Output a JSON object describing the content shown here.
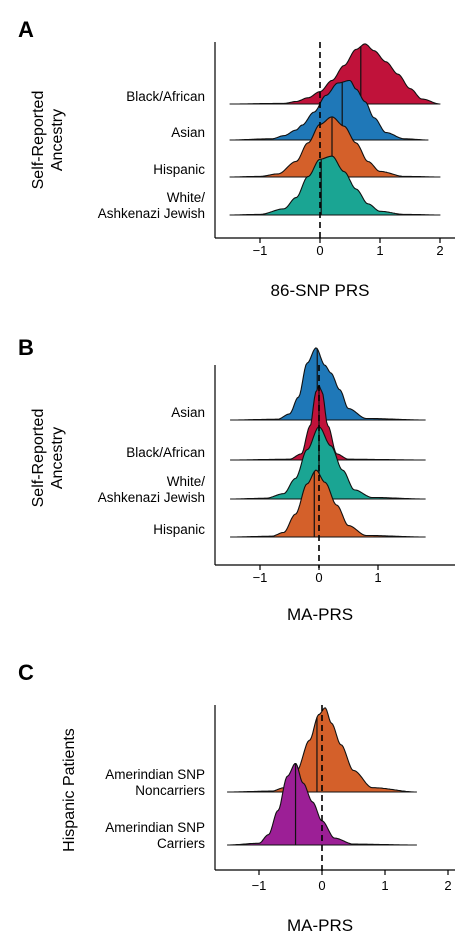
{
  "chart_data": [
    {
      "panel": "A",
      "type": "area",
      "xlabel": "86-SNP PRS",
      "ylabel": [
        "Self-Reported",
        "Ancestry"
      ],
      "xlim": [
        -1.7,
        2.2
      ],
      "xticks": [
        -1,
        0,
        1,
        2
      ],
      "tick_labels": [
        "−1",
        "0",
        "1",
        "2"
      ],
      "reference_line_x": 0,
      "series": [
        {
          "name": "White/\nAshkenazi Jewish",
          "label_lines": [
            "White/",
            "Ashkenazi Jewish"
          ],
          "color": "#1aa593",
          "range": [
            -1.5,
            2.0
          ],
          "median": 0.02,
          "x": [
            -1.5,
            -1.0,
            -0.6,
            -0.4,
            -0.2,
            0.0,
            0.2,
            0.4,
            0.6,
            0.8,
            1.0,
            1.4,
            2.0
          ],
          "y": [
            0,
            0.01,
            0.1,
            0.28,
            0.62,
            0.9,
            0.95,
            0.7,
            0.42,
            0.18,
            0.06,
            0.01,
            0
          ]
        },
        {
          "name": "Hispanic",
          "color": "#d4602a",
          "range": [
            -1.5,
            2.0
          ],
          "median": 0.2,
          "x": [
            -1.5,
            -1.0,
            -0.7,
            -0.4,
            -0.2,
            0.0,
            0.2,
            0.4,
            0.6,
            0.8,
            1.0,
            1.4,
            2.0
          ],
          "y": [
            0,
            0.01,
            0.05,
            0.25,
            0.55,
            0.85,
            0.97,
            0.82,
            0.55,
            0.25,
            0.09,
            0.01,
            0
          ]
        },
        {
          "name": "Asian",
          "color": "#1f78b8",
          "range": [
            -1.5,
            1.8
          ],
          "median": 0.37,
          "x": [
            -1.5,
            -0.8,
            -0.6,
            -0.4,
            -0.3,
            -0.1,
            0.1,
            0.3,
            0.5,
            0.6,
            0.75,
            0.9,
            1.1,
            1.4,
            1.8
          ],
          "y": [
            0,
            0.02,
            0.07,
            0.16,
            0.24,
            0.45,
            0.72,
            0.92,
            0.96,
            0.82,
            0.62,
            0.36,
            0.12,
            0.02,
            0
          ]
        },
        {
          "name": "Black/African",
          "color": "#c0123a",
          "range": [
            -1.5,
            2.0
          ],
          "median": 0.68,
          "x": [
            -1.5,
            -0.6,
            -0.4,
            -0.2,
            0.0,
            0.2,
            0.4,
            0.6,
            0.75,
            0.9,
            1.1,
            1.3,
            1.5,
            1.7,
            2.0
          ],
          "y": [
            0,
            0.01,
            0.04,
            0.1,
            0.2,
            0.38,
            0.62,
            0.88,
            0.97,
            0.86,
            0.68,
            0.48,
            0.25,
            0.08,
            0
          ]
        }
      ]
    },
    {
      "panel": "B",
      "type": "area",
      "xlabel": "MA-PRS",
      "ylabel": [
        "Self-Reported",
        "Ancestry"
      ],
      "xlim": [
        -1.7,
        2.0
      ],
      "xticks": [
        -1,
        0,
        1
      ],
      "tick_labels": [
        "−1",
        "0",
        "1"
      ],
      "reference_line_x": 0,
      "series": [
        {
          "name": "Hispanic",
          "color": "#d4602a",
          "range": [
            -1.5,
            1.8
          ],
          "median": -0.08,
          "x": [
            -1.5,
            -0.8,
            -0.6,
            -0.4,
            -0.2,
            -0.05,
            0.1,
            0.3,
            0.5,
            0.8,
            1.8
          ],
          "y": [
            0,
            0.01,
            0.06,
            0.3,
            0.7,
            0.88,
            0.72,
            0.42,
            0.15,
            0.02,
            0
          ]
        },
        {
          "name": "White/\nAshkenazi Jewish",
          "label_lines": [
            "White/",
            "Ashkenazi Jewish"
          ],
          "color": "#1aa593",
          "range": [
            -1.5,
            1.8
          ],
          "median": 0.0,
          "x": [
            -1.5,
            -0.9,
            -0.6,
            -0.4,
            -0.2,
            0.0,
            0.2,
            0.4,
            0.6,
            0.9,
            1.8
          ],
          "y": [
            0,
            0.01,
            0.07,
            0.27,
            0.65,
            0.95,
            0.7,
            0.38,
            0.12,
            0.02,
            0
          ]
        },
        {
          "name": "Black/African",
          "color": "#c0123a",
          "range": [
            -1.5,
            1.8
          ],
          "median": 0.0,
          "x": [
            -1.5,
            -0.5,
            -0.3,
            -0.15,
            -0.05,
            0.0,
            0.05,
            0.15,
            0.3,
            0.5,
            1.8
          ],
          "y": [
            0,
            0.01,
            0.08,
            0.45,
            0.9,
            0.98,
            0.9,
            0.45,
            0.08,
            0.01,
            0
          ]
        },
        {
          "name": "Asian",
          "color": "#1f78b8",
          "range": [
            -1.5,
            1.8
          ],
          "median": -0.03,
          "x": [
            -1.5,
            -0.7,
            -0.5,
            -0.35,
            -0.2,
            -0.05,
            0.1,
            0.2,
            0.35,
            0.5,
            0.8,
            1.8
          ],
          "y": [
            0,
            0.01,
            0.08,
            0.3,
            0.75,
            0.95,
            0.72,
            0.62,
            0.4,
            0.15,
            0.02,
            0
          ]
        }
      ]
    },
    {
      "panel": "C",
      "type": "area",
      "xlabel": "MA-PRS",
      "ylabel": [
        "Hispanic Patients"
      ],
      "xlim": [
        -1.7,
        2.2
      ],
      "xticks": [
        -1,
        0,
        1,
        2
      ],
      "tick_labels": [
        "−1",
        "0",
        "1",
        "2"
      ],
      "reference_line_x": 0,
      "series": [
        {
          "name": "Amerindian SNP\nCarriers",
          "label_lines": [
            "Amerindian SNP",
            "Carriers"
          ],
          "color": "#9c1f96",
          "range": [
            -1.5,
            1.5
          ],
          "median": -0.42,
          "x": [
            -1.5,
            -1.0,
            -0.85,
            -0.7,
            -0.55,
            -0.42,
            -0.3,
            -0.15,
            0.0,
            0.2,
            0.5,
            1.5
          ],
          "y": [
            0,
            0.02,
            0.12,
            0.4,
            0.8,
            0.95,
            0.72,
            0.5,
            0.28,
            0.08,
            0.01,
            0
          ]
        },
        {
          "name": "Amerindian SNP\nNoncarriers",
          "label_lines": [
            "Amerindian SNP",
            "Noncarriers"
          ],
          "color": "#d4602a",
          "range": [
            -1.5,
            1.5
          ],
          "median": -0.08,
          "x": [
            -1.5,
            -0.8,
            -0.6,
            -0.4,
            -0.2,
            -0.05,
            0.05,
            0.15,
            0.3,
            0.5,
            0.8,
            1.5
          ],
          "y": [
            0,
            0.01,
            0.05,
            0.25,
            0.6,
            0.9,
            0.98,
            0.8,
            0.55,
            0.25,
            0.05,
            0
          ]
        }
      ]
    }
  ]
}
